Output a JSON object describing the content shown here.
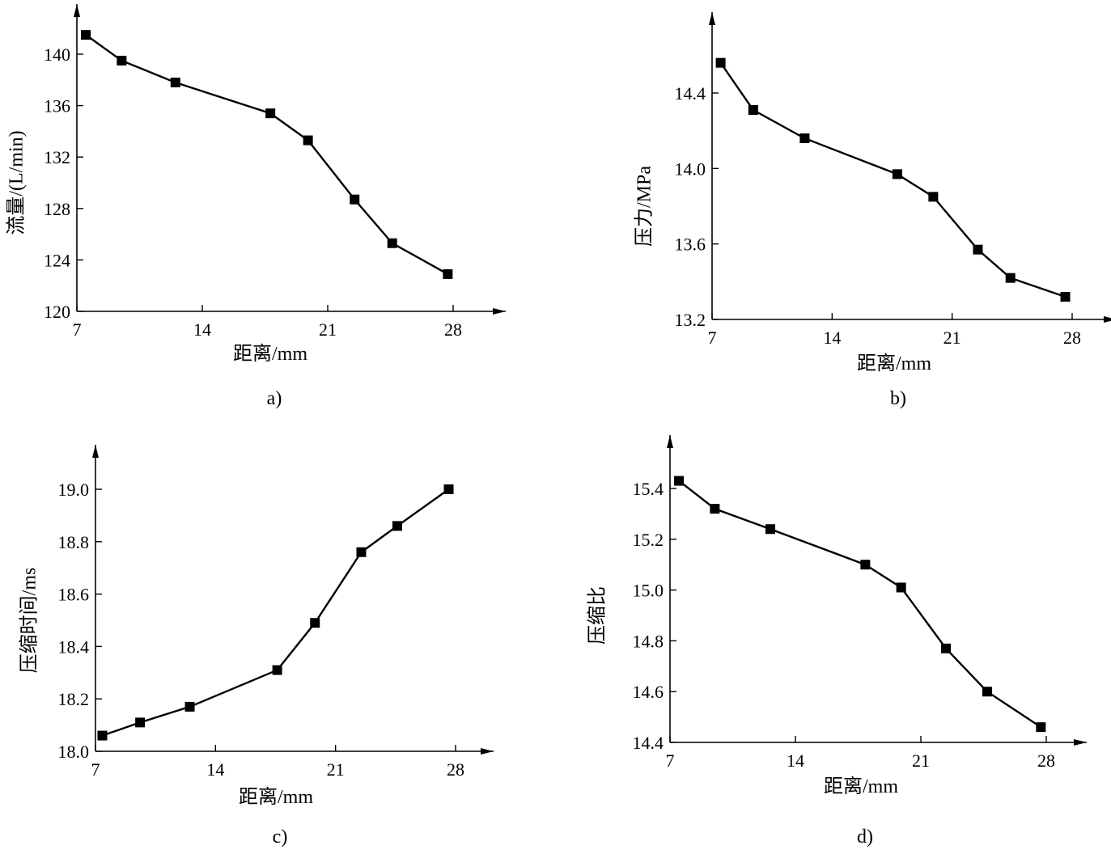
{
  "chart_data": [
    {
      "type": "line",
      "caption": "a)",
      "xlabel": "距离/mm",
      "ylabel": "流量/(L/min)",
      "xticks": [
        "7",
        "14",
        "21",
        "28"
      ],
      "yticks": [
        "120",
        "124",
        "128",
        "132",
        "136",
        "140"
      ],
      "xlim": [
        7,
        28
      ],
      "ylim": [
        120,
        140
      ],
      "x": [
        7.5,
        9.5,
        12.5,
        17.8,
        19.9,
        22.5,
        24.6,
        27.7
      ],
      "y": [
        141.5,
        139.5,
        137.8,
        135.4,
        133.3,
        128.7,
        125.3,
        122.9
      ]
    },
    {
      "type": "line",
      "caption": "b)",
      "xlabel": "距离/mm",
      "ylabel": "压力/MPa",
      "xticks": [
        "7",
        "14",
        "21",
        "28"
      ],
      "yticks": [
        "13.2",
        "13.6",
        "14.0",
        "14.4"
      ],
      "xlim": [
        7,
        28
      ],
      "ylim": [
        13.2,
        14.4
      ],
      "x": [
        7.5,
        9.4,
        12.4,
        17.8,
        19.9,
        22.5,
        24.4,
        27.6
      ],
      "y": [
        14.56,
        14.31,
        14.16,
        13.97,
        13.85,
        13.57,
        13.42,
        13.32
      ]
    },
    {
      "type": "line",
      "caption": "c)",
      "xlabel": "距离/mm",
      "ylabel": "压缩时间/ms",
      "xticks": [
        "7",
        "14",
        "21",
        "28"
      ],
      "yticks": [
        "18.0",
        "18.2",
        "18.4",
        "18.6",
        "18.8",
        "19.0"
      ],
      "xlim": [
        7,
        28
      ],
      "ylim": [
        18.0,
        19.0
      ],
      "x": [
        7.4,
        9.6,
        12.5,
        17.6,
        19.8,
        22.5,
        24.6,
        27.6
      ],
      "y": [
        18.06,
        18.11,
        18.17,
        18.31,
        18.49,
        18.76,
        18.86,
        19.0
      ]
    },
    {
      "type": "line",
      "caption": "d)",
      "xlabel": "距离/mm",
      "ylabel": "压缩比",
      "xticks": [
        "7",
        "14",
        "21",
        "28"
      ],
      "yticks": [
        "14.4",
        "14.6",
        "14.8",
        "15.0",
        "15.2",
        "15.4"
      ],
      "xlim": [
        7,
        28
      ],
      "ylim": [
        14.4,
        15.4
      ],
      "x": [
        7.5,
        9.5,
        12.6,
        17.9,
        19.9,
        22.4,
        24.7,
        27.7
      ],
      "y": [
        15.43,
        15.32,
        15.24,
        15.1,
        15.01,
        14.77,
        14.6,
        14.46
      ]
    }
  ]
}
